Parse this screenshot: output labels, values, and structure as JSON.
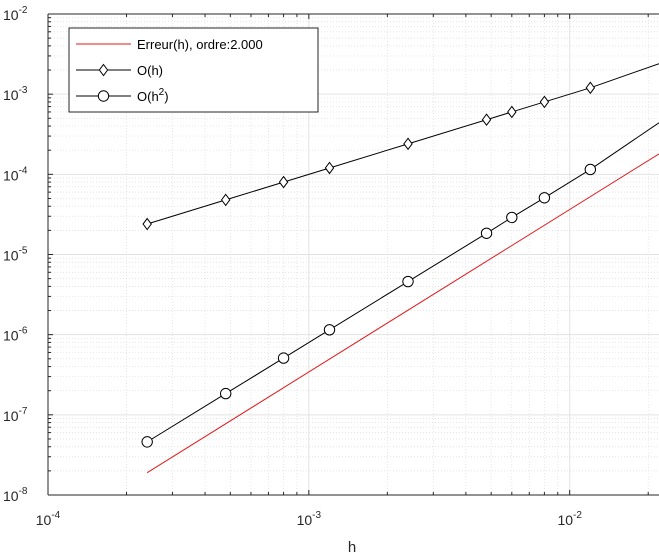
{
  "chart_data": {
    "type": "line",
    "xscale": "log",
    "yscale": "log",
    "xlim": [
      0.0001,
      0.022
    ],
    "ylim": [
      1e-08,
      0.01
    ],
    "xlabel": "h",
    "ylabel": "",
    "grid": "major-and-minor",
    "legend_position": "top-left",
    "x_ticks": [
      {
        "base": "10",
        "exp": "-4",
        "value": 0.0001
      },
      {
        "base": "10",
        "exp": "-3",
        "value": 0.001
      },
      {
        "base": "10",
        "exp": "-2",
        "value": 0.01
      }
    ],
    "y_ticks": [
      {
        "base": "10",
        "exp": "-8",
        "value": 1e-08
      },
      {
        "base": "10",
        "exp": "-7",
        "value": 1e-07
      },
      {
        "base": "10",
        "exp": "-6",
        "value": 1e-06
      },
      {
        "base": "10",
        "exp": "-5",
        "value": 1e-05
      },
      {
        "base": "10",
        "exp": "-4",
        "value": 0.0001
      },
      {
        "base": "10",
        "exp": "-3",
        "value": 0.001
      },
      {
        "base": "10",
        "exp": "-2",
        "value": 0.01
      }
    ],
    "series": [
      {
        "name": "Erreur(h), ordre:2.000",
        "color": "#e31a1c",
        "marker": "none",
        "x": [
          0.00024,
          0.022
        ],
        "y": [
          1.9e-08,
          0.00018
        ]
      },
      {
        "name": "O(h)",
        "legend_parts": [
          "O(h)"
        ],
        "color": "#000000",
        "marker": "diamond",
        "x": [
          0.00024,
          0.00048,
          0.0008,
          0.0012,
          0.0024,
          0.0048,
          0.006,
          0.008,
          0.012,
          0.022
        ],
        "y": [
          2.4e-05,
          4.8e-05,
          8e-05,
          0.00012,
          0.00024,
          0.00048,
          0.0006,
          0.0008,
          0.0012,
          0.0024
        ],
        "marker_count": 9
      },
      {
        "name": "O(h^2)",
        "legend_parts": [
          "O(h",
          "2",
          ")"
        ],
        "color": "#000000",
        "marker": "circle",
        "x": [
          0.00024,
          0.00048,
          0.0008,
          0.0012,
          0.0024,
          0.0048,
          0.006,
          0.008,
          0.012,
          0.022
        ],
        "y": [
          4.6e-08,
          1.84e-07,
          5.1e-07,
          1.15e-06,
          4.6e-06,
          1.84e-05,
          2.9e-05,
          5.1e-05,
          0.000115,
          0.00044
        ],
        "marker_count": 9
      }
    ]
  }
}
